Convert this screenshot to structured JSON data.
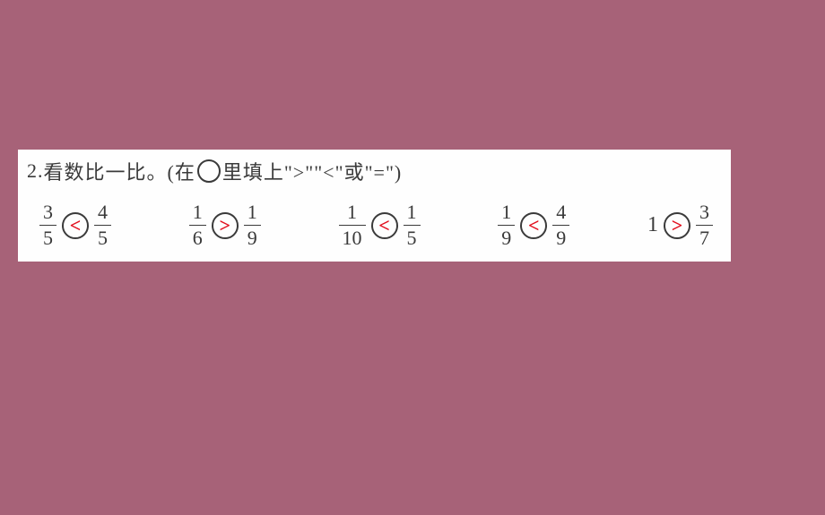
{
  "colors": {
    "page_bg": "#a76278",
    "worksheet_bg": "#fefefe",
    "text": "#3a3a3a",
    "answer": "#e20f1e"
  },
  "instruction": {
    "number": "2.",
    "text_before": "看数比一比。(在",
    "text_after": "里填上\">\"\"<\"或\"=\")"
  },
  "problems": [
    {
      "left": {
        "type": "fraction",
        "num": "3",
        "den": "5"
      },
      "answer": "<",
      "right": {
        "type": "fraction",
        "num": "4",
        "den": "5"
      }
    },
    {
      "left": {
        "type": "fraction",
        "num": "1",
        "den": "6"
      },
      "answer": ">",
      "right": {
        "type": "fraction",
        "num": "1",
        "den": "9"
      }
    },
    {
      "left": {
        "type": "fraction",
        "num": "1",
        "den": "10"
      },
      "answer": "<",
      "right": {
        "type": "fraction",
        "num": "1",
        "den": "5"
      }
    },
    {
      "left": {
        "type": "fraction",
        "num": "1",
        "den": "9"
      },
      "answer": "<",
      "right": {
        "type": "fraction",
        "num": "4",
        "den": "9"
      }
    },
    {
      "left": {
        "type": "whole",
        "value": "1"
      },
      "answer": ">",
      "right": {
        "type": "fraction",
        "num": "3",
        "den": "7"
      }
    }
  ]
}
